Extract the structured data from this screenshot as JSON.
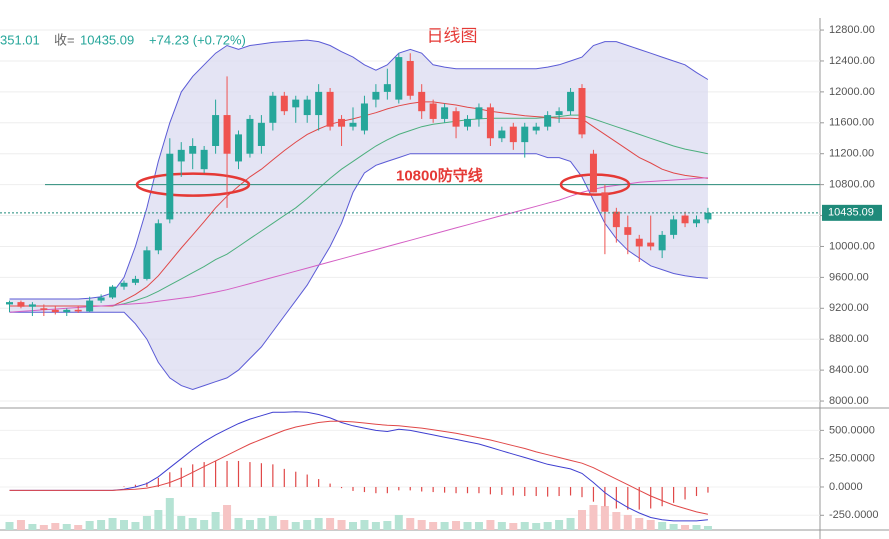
{
  "header": {
    "prev": "351.01",
    "close_label": "收=",
    "close": "10435.09",
    "change": "+74.23 (+0.72%)"
  },
  "chart_data": [
    {
      "type": "candlestick",
      "title": "日线图",
      "open": [
        9250,
        9280,
        9220,
        9200,
        9180,
        9150,
        9180,
        9160,
        9300,
        9340,
        9480,
        9530,
        9580,
        9950,
        10350,
        11100,
        11200,
        11000,
        11300,
        11700,
        11100,
        11200,
        11300,
        11600,
        11950,
        11800,
        11700,
        11700,
        12000,
        11650,
        11550,
        11500,
        11900,
        12000,
        11900,
        12400,
        12000,
        11850,
        11650,
        11750,
        11550,
        11650,
        11800,
        11400,
        11550,
        11350,
        11500,
        11550,
        11700,
        11750,
        12050,
        11200,
        10700,
        10450,
        10250,
        10100,
        10050,
        9950,
        10150,
        10400,
        10300,
        10350
      ],
      "high": [
        9300,
        9300,
        9280,
        9250,
        9230,
        9200,
        9230,
        9350,
        9380,
        9500,
        9560,
        9620,
        10000,
        10350,
        11400,
        11350,
        11400,
        11300,
        11900,
        12200,
        11500,
        11700,
        11700,
        12000,
        12000,
        11950,
        11950,
        12100,
        12050,
        11700,
        11800,
        11950,
        12100,
        12300,
        12500,
        12500,
        12100,
        11900,
        11850,
        11800,
        11700,
        11850,
        11850,
        11550,
        11600,
        11600,
        11600,
        11750,
        11800,
        12050,
        12100,
        11250,
        10800,
        10500,
        10400,
        10150,
        10400,
        10200,
        10400,
        10450,
        10400,
        10500
      ],
      "low": [
        9150,
        9200,
        9100,
        9100,
        9120,
        9100,
        9140,
        9150,
        9270,
        9320,
        9440,
        9500,
        9560,
        9900,
        10300,
        10900,
        11000,
        10950,
        11200,
        10500,
        11000,
        11150,
        11200,
        11500,
        11700,
        11600,
        11600,
        11500,
        11500,
        11300,
        11500,
        11450,
        11800,
        11900,
        11850,
        11900,
        11650,
        11600,
        11600,
        11400,
        11500,
        11550,
        11300,
        11350,
        11250,
        11150,
        11450,
        11500,
        11600,
        11700,
        11400,
        10700,
        9900,
        10050,
        9900,
        9800,
        9950,
        9850,
        10100,
        10250,
        10250,
        10300
      ],
      "close": [
        9280,
        9220,
        9250,
        9180,
        9150,
        9180,
        9160,
        9300,
        9340,
        9480,
        9530,
        9580,
        9950,
        10300,
        11200,
        11250,
        11300,
        11250,
        11700,
        11200,
        11450,
        11650,
        11600,
        11950,
        11750,
        11900,
        11900,
        12000,
        11550,
        11550,
        11600,
        11850,
        12000,
        12100,
        12450,
        11950,
        11750,
        11650,
        11800,
        11550,
        11650,
        11800,
        11400,
        11500,
        11350,
        11550,
        11550,
        11700,
        11750,
        12000,
        11450,
        10700,
        10450,
        10250,
        10150,
        10000,
        10000,
        10150,
        10350,
        10300,
        10350,
        10435
      ],
      "up_color": "#26a69a",
      "down_color": "#ef5350",
      "bollinger": {
        "color": "#5b5bd6",
        "fill": "#d9d9ef",
        "upper": [
          9320,
          9320,
          9320,
          9320,
          9320,
          9320,
          9320,
          9330,
          9350,
          9400,
          9600,
          10000,
          10500,
          11100,
          11600,
          12000,
          12200,
          12350,
          12500,
          12600,
          12550,
          12600,
          12620,
          12640,
          12650,
          12660,
          12670,
          12650,
          12600,
          12520,
          12450,
          12350,
          12280,
          12350,
          12500,
          12550,
          12500,
          12350,
          12320,
          12300,
          12300,
          12300,
          12300,
          12300,
          12300,
          12300,
          12300,
          12320,
          12350,
          12400,
          12450,
          12600,
          12650,
          12650,
          12600,
          12550,
          12500,
          12450,
          12400,
          12350,
          12250,
          12160
        ],
        "lower": [
          9150,
          9150,
          9150,
          9150,
          9150,
          9150,
          9150,
          9150,
          9150,
          9150,
          9150,
          9000,
          8800,
          8500,
          8300,
          8200,
          8150,
          8200,
          8250,
          8300,
          8400,
          8550,
          8700,
          8900,
          9100,
          9300,
          9500,
          9750,
          10000,
          10300,
          10700,
          10950,
          11050,
          11100,
          11150,
          11200,
          11200,
          11200,
          11200,
          11200,
          11200,
          11200,
          11200,
          11200,
          11200,
          11200,
          11200,
          11150,
          11150,
          11100,
          10900,
          10600,
          10300,
          10100,
          9950,
          9850,
          9750,
          9700,
          9650,
          9620,
          9600,
          9590
        ]
      },
      "lines": [
        {
          "color": "#4caf7d",
          "values": [
            9230,
            9230,
            9230,
            9230,
            9230,
            9230,
            9230,
            9230,
            9230,
            9230,
            9260,
            9300,
            9350,
            9420,
            9500,
            9580,
            9660,
            9740,
            9830,
            9900,
            10000,
            10100,
            10200,
            10300,
            10400,
            10500,
            10620,
            10750,
            10880,
            11000,
            11100,
            11200,
            11300,
            11380,
            11450,
            11500,
            11550,
            11580,
            11600,
            11620,
            11640,
            11650,
            11660,
            11660,
            11660,
            11660,
            11660,
            11670,
            11680,
            11700,
            11700,
            11650,
            11600,
            11550,
            11500,
            11450,
            11400,
            11350,
            11300,
            11260,
            11230,
            11200
          ]
        },
        {
          "color": "#e04848",
          "values": [
            9230,
            9230,
            9230,
            9230,
            9230,
            9230,
            9230,
            9230,
            9230,
            9230,
            9300,
            9380,
            9480,
            9620,
            9800,
            9980,
            10150,
            10320,
            10500,
            10650,
            10780,
            10900,
            11000,
            11120,
            11240,
            11350,
            11450,
            11520,
            11580,
            11620,
            11650,
            11690,
            11730,
            11780,
            11820,
            11850,
            11870,
            11870,
            11850,
            11830,
            11800,
            11780,
            11750,
            11730,
            11710,
            11690,
            11680,
            11670,
            11660,
            11660,
            11650,
            11550,
            11450,
            11350,
            11250,
            11150,
            11080,
            11000,
            10950,
            10920,
            10900,
            10880
          ]
        },
        {
          "color": "#d45fc4",
          "values": [
            9150,
            9160,
            9170,
            9180,
            9190,
            9200,
            9210,
            9220,
            9230,
            9240,
            9250,
            9260,
            9270,
            9290,
            9310,
            9330,
            9350,
            9380,
            9410,
            9440,
            9480,
            9520,
            9560,
            9600,
            9640,
            9680,
            9720,
            9760,
            9800,
            9840,
            9880,
            9920,
            9960,
            10000,
            10040,
            10080,
            10120,
            10160,
            10200,
            10240,
            10280,
            10320,
            10360,
            10400,
            10440,
            10480,
            10520,
            10560,
            10600,
            10650,
            10700,
            10740,
            10770,
            10790,
            10810,
            10830,
            10840,
            10850,
            10860,
            10870,
            10880,
            10890
          ]
        }
      ],
      "hline": {
        "value": 10800,
        "color": "#2a8c7a",
        "label": "10800防守线"
      },
      "last_price": {
        "value": 10435.09,
        "label": "10435.09"
      },
      "ylim": [
        7910,
        12930
      ],
      "yticks": [
        {
          "value": 12800,
          "label": "12800.00"
        },
        {
          "value": 12400,
          "label": "12400.00"
        },
        {
          "value": 12000,
          "label": "12000.00"
        },
        {
          "value": 11600,
          "label": "11600.00"
        },
        {
          "value": 11200,
          "label": "11200.00"
        },
        {
          "value": 10800,
          "label": "10800.00"
        },
        {
          "value": 10400,
          "label": "10400.00"
        },
        {
          "value": 10000,
          "label": "10000.00"
        },
        {
          "value": 9600,
          "label": "9600.00"
        },
        {
          "value": 9200,
          "label": "9200.00"
        },
        {
          "value": 8800,
          "label": "8800.00"
        },
        {
          "value": 8400,
          "label": "8400.00"
        },
        {
          "value": 8000,
          "label": "8000.00"
        }
      ],
      "grid": true
    },
    {
      "type": "macd",
      "series": [
        {
          "color": "#3f3fd0",
          "values": [
            -30,
            -30,
            -30,
            -30,
            -30,
            -30,
            -30,
            -30,
            -30,
            -30,
            -20,
            0,
            30,
            90,
            170,
            250,
            330,
            400,
            460,
            510,
            560,
            600,
            630,
            660,
            660,
            665,
            660,
            640,
            610,
            570,
            540,
            520,
            500,
            490,
            510,
            500,
            480,
            460,
            440,
            420,
            400,
            380,
            350,
            320,
            290,
            260,
            230,
            200,
            180,
            160,
            120,
            40,
            -50,
            -120,
            -180,
            -230,
            -270,
            -290,
            -300,
            -300,
            -300,
            -290
          ]
        },
        {
          "color": "#e04848",
          "values": [
            -30,
            -30,
            -30,
            -30,
            -30,
            -30,
            -30,
            -30,
            -30,
            -30,
            -25,
            -20,
            -10,
            10,
            40,
            80,
            130,
            180,
            230,
            280,
            330,
            380,
            420,
            460,
            500,
            530,
            550,
            570,
            580,
            580,
            575,
            565,
            555,
            545,
            540,
            530,
            520,
            505,
            490,
            475,
            455,
            435,
            415,
            390,
            365,
            340,
            310,
            285,
            260,
            235,
            210,
            170,
            120,
            70,
            20,
            -30,
            -80,
            -120,
            -160,
            -190,
            -220,
            -240
          ]
        }
      ],
      "histogram": {
        "color": "#e04848",
        "values": [
          0,
          0,
          0,
          0,
          0,
          0,
          0,
          0,
          0,
          0,
          5,
          20,
          40,
          80,
          130,
          170,
          200,
          220,
          230,
          230,
          230,
          220,
          210,
          200,
          160,
          135,
          110,
          70,
          30,
          -10,
          -35,
          -45,
          -55,
          -55,
          -30,
          -30,
          -40,
          -45,
          -50,
          -55,
          -55,
          -55,
          -65,
          -70,
          -75,
          -80,
          -80,
          -85,
          -80,
          -75,
          -90,
          -130,
          -170,
          -190,
          -200,
          -200,
          -190,
          -170,
          -140,
          -110,
          -80,
          -50
        ]
      },
      "volume": {
        "up_color": "#b5e3d4",
        "down_color": "#f6c4c4",
        "values": [
          8,
          10,
          6,
          5,
          7,
          6,
          5,
          9,
          10,
          12,
          10,
          8,
          14,
          20,
          32,
          14,
          12,
          10,
          18,
          25,
          12,
          10,
          12,
          14,
          10,
          8,
          10,
          12,
          12,
          10,
          8,
          10,
          8,
          9,
          15,
          12,
          10,
          8,
          8,
          9,
          8,
          8,
          10,
          8,
          7,
          8,
          7,
          8,
          10,
          12,
          20,
          25,
          24,
          18,
          15,
          12,
          10,
          8,
          6,
          5,
          5,
          4
        ]
      },
      "vlim": [
        0,
        120
      ],
      "ylim": [
        -380,
        680
      ],
      "yticks": [
        {
          "value": 500,
          "label": "500.0000"
        },
        {
          "value": 250,
          "label": "250.0000"
        },
        {
          "value": 0,
          "label": "0.0000"
        },
        {
          "value": -250,
          "label": "-250.0000"
        }
      ]
    }
  ]
}
